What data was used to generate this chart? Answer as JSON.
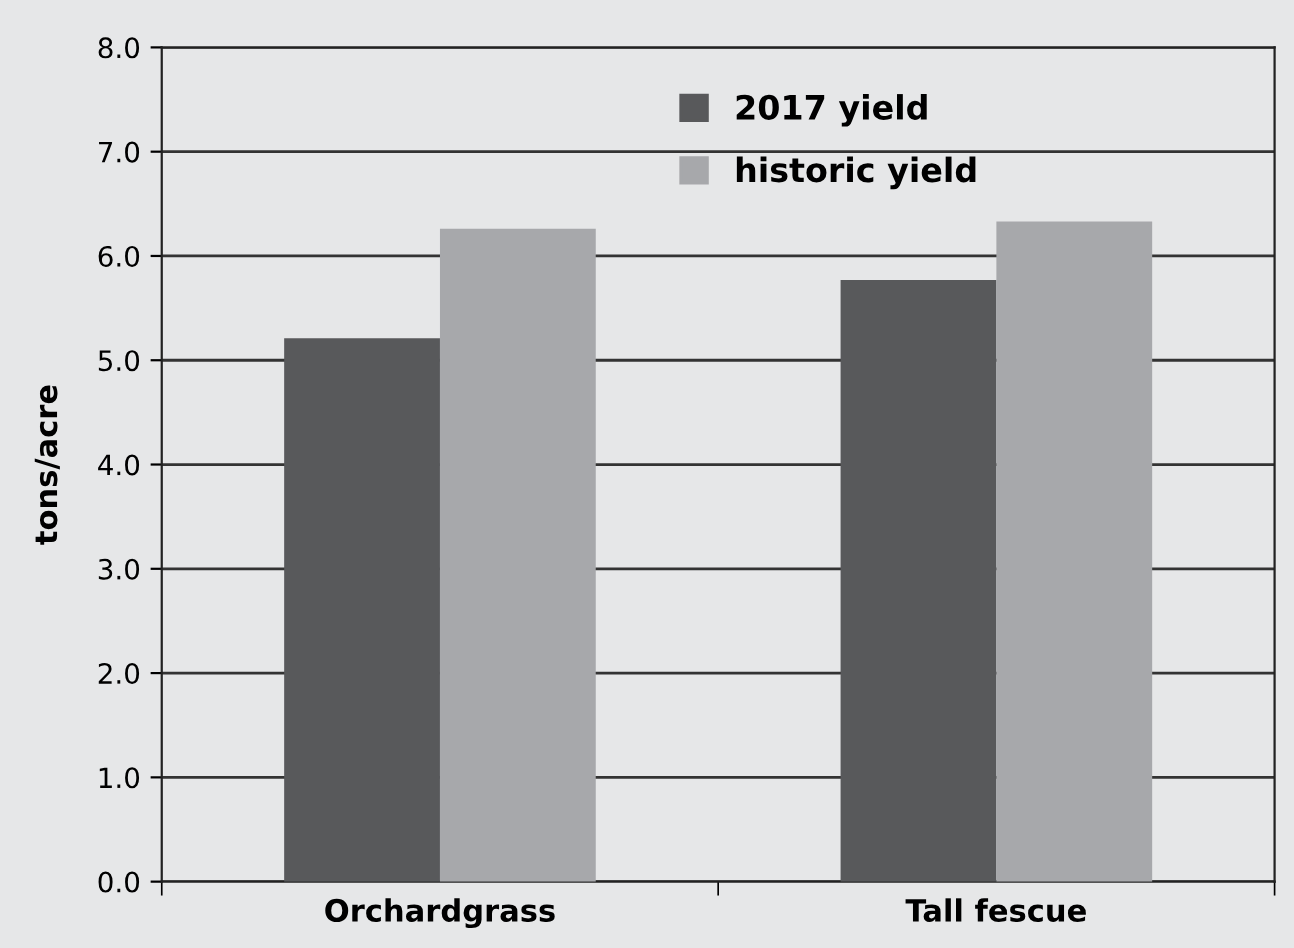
{
  "chart_data": {
    "type": "bar",
    "ylabel": "tons/acre",
    "categories": [
      "Orchardgrass",
      "Tall fescue"
    ],
    "series": [
      {
        "name": "2017 yield",
        "color": "#58595b",
        "values": [
          5.21,
          5.77
        ]
      },
      {
        "name": "historic yield",
        "color": "#a7a8ab",
        "values": [
          6.26,
          6.33
        ]
      }
    ],
    "ylim": [
      0,
      8
    ],
    "yticks": [
      {
        "value": 0,
        "label": "0.0"
      },
      {
        "value": 1,
        "label": "1.0"
      },
      {
        "value": 2,
        "label": "2.0"
      },
      {
        "value": 3,
        "label": "3.0"
      },
      {
        "value": 4,
        "label": "4.0"
      },
      {
        "value": 5,
        "label": "5.0"
      },
      {
        "value": 6,
        "label": "6.0"
      },
      {
        "value": 7,
        "label": "7.0"
      },
      {
        "value": 8,
        "label": "8.0"
      }
    ],
    "grid": "y",
    "legend": "top"
  }
}
